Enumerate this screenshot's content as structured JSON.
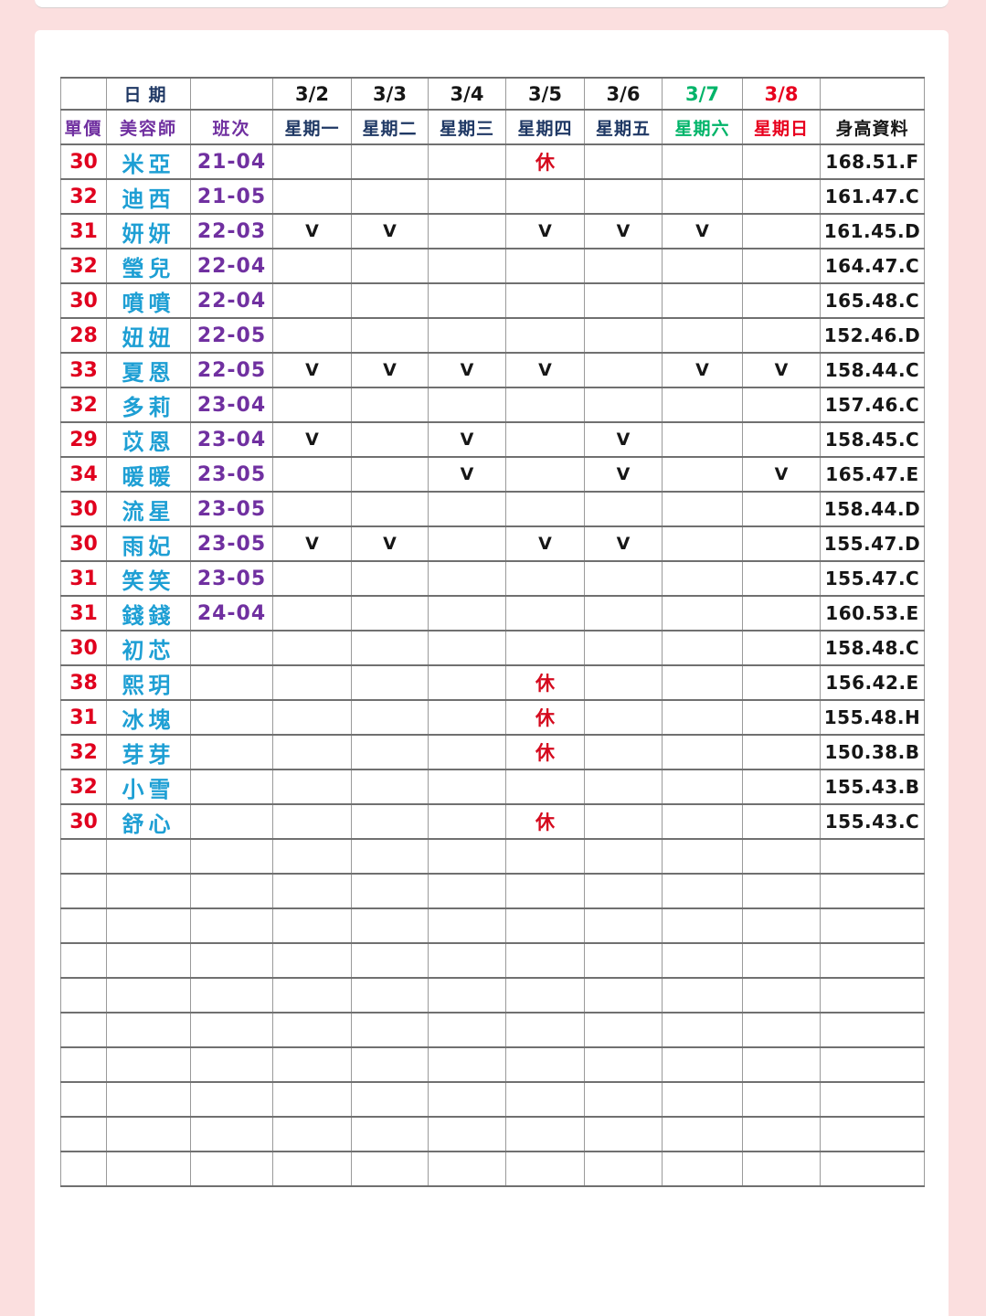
{
  "page": {
    "background_color": "#fbdfdf",
    "paper_color": "#ffffff"
  },
  "table": {
    "date_label": "日期",
    "dates": [
      {
        "text": "3/2",
        "color": "black"
      },
      {
        "text": "3/3",
        "color": "black"
      },
      {
        "text": "3/4",
        "color": "black"
      },
      {
        "text": "3/5",
        "color": "black"
      },
      {
        "text": "3/6",
        "color": "black"
      },
      {
        "text": "3/7",
        "color": "green"
      },
      {
        "text": "3/8",
        "color": "red"
      }
    ],
    "col_headers": {
      "price": "單價",
      "beautician": "美容師",
      "shift": "班次",
      "height": "身高資料"
    },
    "weekdays": [
      {
        "text": "星期一",
        "color": "navy"
      },
      {
        "text": "星期二",
        "color": "navy"
      },
      {
        "text": "星期三",
        "color": "navy"
      },
      {
        "text": "星期四",
        "color": "navy"
      },
      {
        "text": "星期五",
        "color": "navy"
      },
      {
        "text": "星期六",
        "color": "green"
      },
      {
        "text": "星期日",
        "color": "red"
      }
    ],
    "marks": {
      "work": "V",
      "rest": "休"
    },
    "rows": [
      {
        "price": "30",
        "name": "米亞",
        "shift": "21-04",
        "days": [
          "",
          "",
          "",
          "休",
          "",
          "",
          ""
        ],
        "height": "168.51.F"
      },
      {
        "price": "32",
        "name": "迪西",
        "shift": "21-05",
        "days": [
          "",
          "",
          "",
          "",
          "",
          "",
          ""
        ],
        "height": "161.47.C"
      },
      {
        "price": "31",
        "name": "妍妍",
        "shift": "22-03",
        "days": [
          "V",
          "V",
          "",
          "V",
          "V",
          "V",
          ""
        ],
        "height": "161.45.D"
      },
      {
        "price": "32",
        "name": "瑩兒",
        "shift": "22-04",
        "days": [
          "",
          "",
          "",
          "",
          "",
          "",
          ""
        ],
        "height": "164.47.C"
      },
      {
        "price": "30",
        "name": "噴噴",
        "shift": "22-04",
        "days": [
          "",
          "",
          "",
          "",
          "",
          "",
          ""
        ],
        "height": "165.48.C"
      },
      {
        "price": "28",
        "name": "妞妞",
        "shift": "22-05",
        "days": [
          "",
          "",
          "",
          "",
          "",
          "",
          ""
        ],
        "height": "152.46.D"
      },
      {
        "price": "33",
        "name": "夏恩",
        "shift": "22-05",
        "days": [
          "V",
          "V",
          "V",
          "V",
          "",
          "V",
          "V"
        ],
        "height": "158.44.C"
      },
      {
        "price": "32",
        "name": "多莉",
        "shift": "23-04",
        "days": [
          "",
          "",
          "",
          "",
          "",
          "",
          ""
        ],
        "height": "157.46.C"
      },
      {
        "price": "29",
        "name": "苡恩",
        "shift": "23-04",
        "days": [
          "V",
          "",
          "V",
          "",
          "V",
          "",
          ""
        ],
        "height": "158.45.C"
      },
      {
        "price": "34",
        "name": "暖暖",
        "shift": "23-05",
        "days": [
          "",
          "",
          "V",
          "",
          "V",
          "",
          "V"
        ],
        "height": "165.47.E"
      },
      {
        "price": "30",
        "name": "流星",
        "shift": "23-05",
        "days": [
          "",
          "",
          "",
          "",
          "",
          "",
          ""
        ],
        "height": "158.44.D"
      },
      {
        "price": "30",
        "name": "雨妃",
        "shift": "23-05",
        "days": [
          "V",
          "V",
          "",
          "V",
          "V",
          "",
          ""
        ],
        "height": "155.47.D"
      },
      {
        "price": "31",
        "name": "笑笑",
        "shift": "23-05",
        "days": [
          "",
          "",
          "",
          "",
          "",
          "",
          ""
        ],
        "height": "155.47.C"
      },
      {
        "price": "31",
        "name": "錢錢",
        "shift": "24-04",
        "days": [
          "",
          "",
          "",
          "",
          "",
          "",
          ""
        ],
        "height": "160.53.E"
      },
      {
        "price": "30",
        "name": "初芯",
        "shift": "",
        "days": [
          "",
          "",
          "",
          "",
          "",
          "",
          ""
        ],
        "height": "158.48.C"
      },
      {
        "price": "38",
        "name": "熙玥",
        "shift": "",
        "days": [
          "",
          "",
          "",
          "休",
          "",
          "",
          ""
        ],
        "height": "156.42.E"
      },
      {
        "price": "31",
        "name": "冰塊",
        "shift": "",
        "days": [
          "",
          "",
          "",
          "休",
          "",
          "",
          ""
        ],
        "height": "155.48.H"
      },
      {
        "price": "32",
        "name": "芽芽",
        "shift": "",
        "days": [
          "",
          "",
          "",
          "休",
          "",
          "",
          ""
        ],
        "height": "150.38.B"
      },
      {
        "price": "32",
        "name": "小雪",
        "shift": "",
        "days": [
          "",
          "",
          "",
          "",
          "",
          "",
          ""
        ],
        "height": "155.43.B"
      },
      {
        "price": "30",
        "name": "舒心",
        "shift": "",
        "days": [
          "",
          "",
          "",
          "休",
          "",
          "",
          ""
        ],
        "height": "155.43.C"
      }
    ],
    "empty_row_count": 10
  }
}
